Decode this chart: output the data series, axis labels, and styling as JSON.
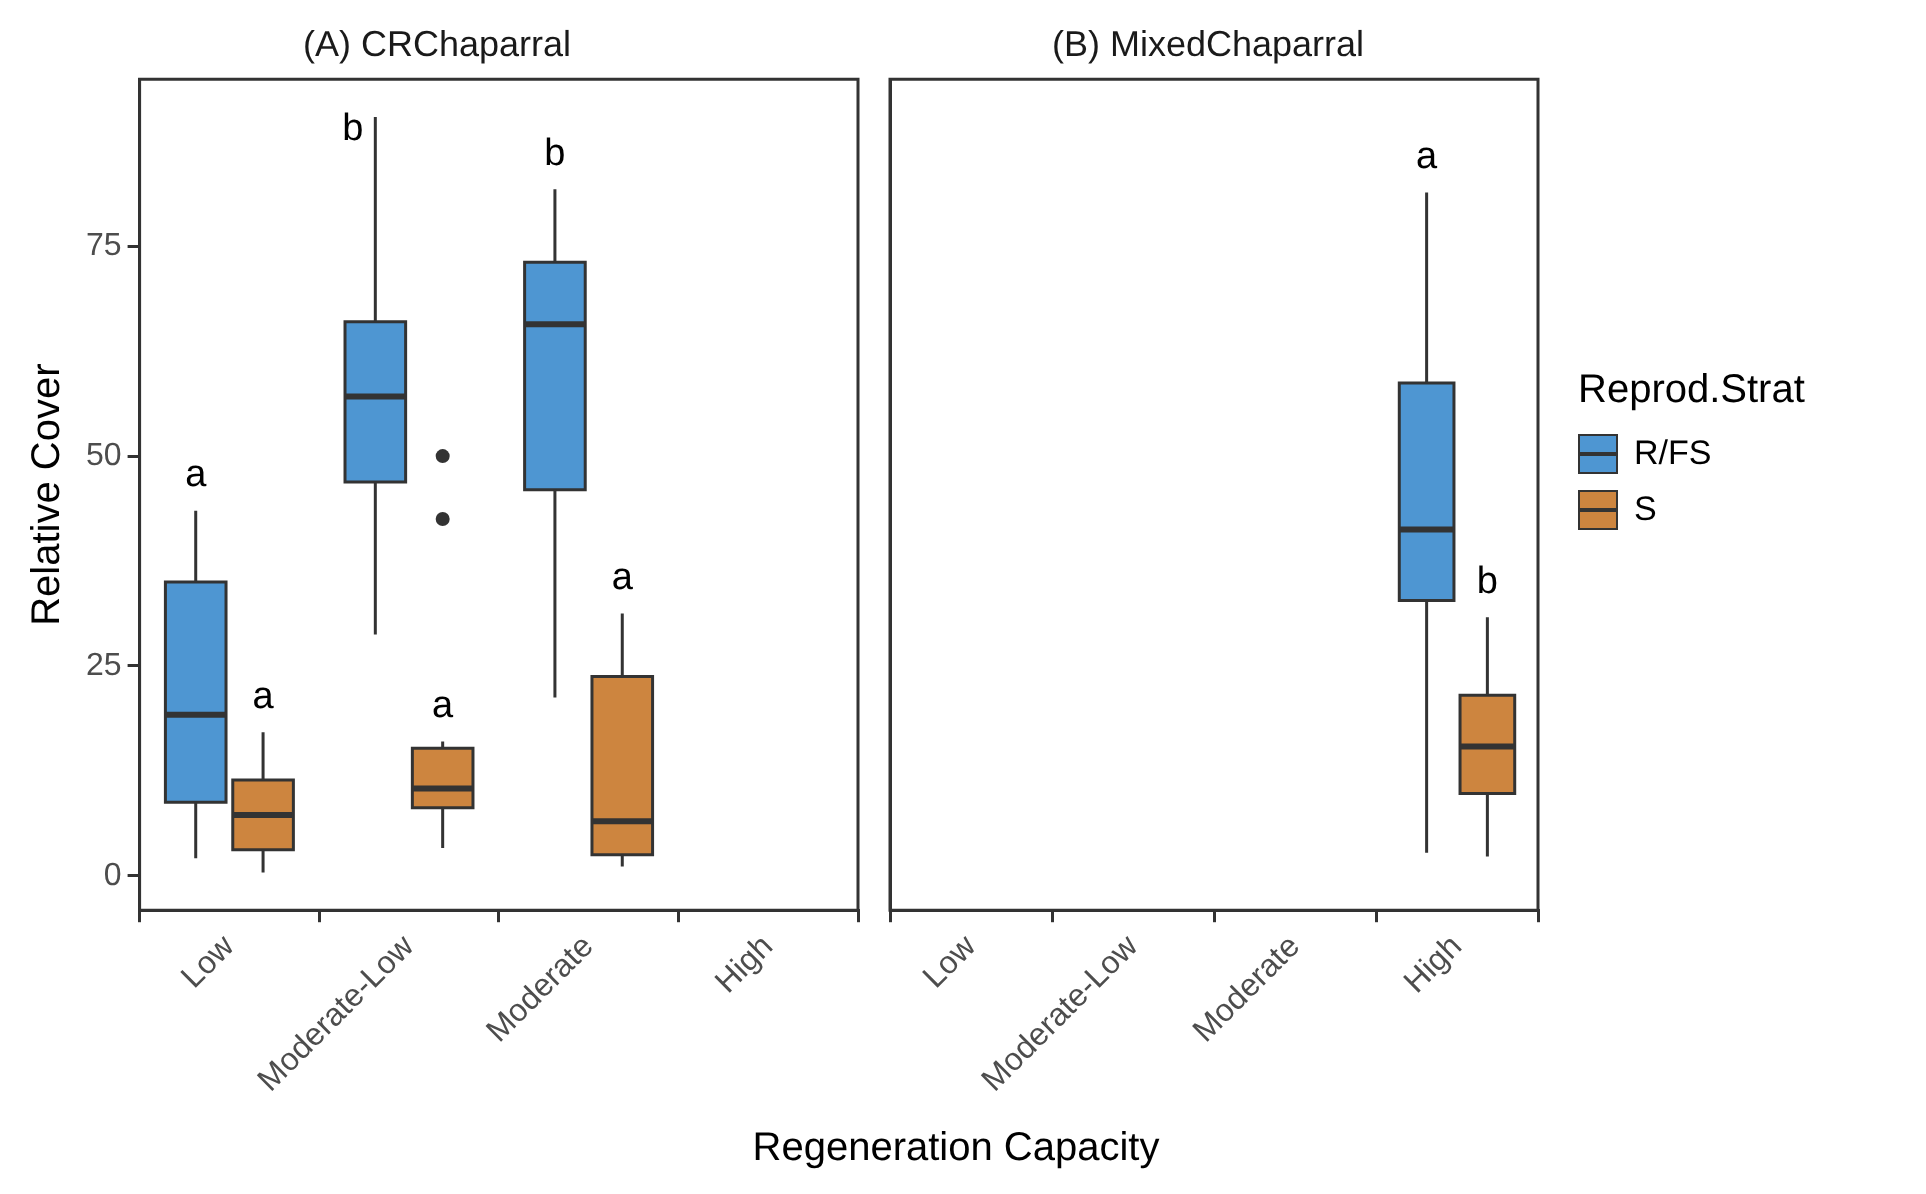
{
  "chart_data": [
    {
      "type": "box",
      "title": "(A) CRChaparral",
      "xlabel": "Regeneration Capacity",
      "ylabel": "Relative Cover",
      "categories": [
        "Low",
        "Moderate-Low",
        "Moderate",
        "High"
      ],
      "ylim": [
        -4.1,
        94.9
      ],
      "yticks": [
        0,
        25,
        50,
        75
      ],
      "series": [
        {
          "color": "#4e96d2",
          "boxes": [
            {
              "low": 2.1,
              "q1": 8.75,
              "median": 19.2,
              "q3": 35,
              "high": 43.5
            },
            {
              "low": 28.75,
              "q1": 46.9,
              "median": 57.1,
              "q3": 66,
              "high": 90.4
            },
            {
              "low": 21.25,
              "q1": 46,
              "median": 65.7,
              "q3": 73.1,
              "high": 81.8
            },
            null
          ]
        },
        {
          "color": "#cd853f",
          "boxes": [
            {
              "low": 0.4,
              "q1": 3.1,
              "median": 7.25,
              "q3": 11.4,
              "high": 17.1
            },
            {
              "low": 3.3,
              "q1": 8.1,
              "median": 10.4,
              "q3": 15.2,
              "high": 16,
              "outliers": [
                50,
                42.5
              ]
            },
            {
              "low": 1.1,
              "q1": 2.5,
              "median": 6.5,
              "q3": 23.75,
              "high": 31.25
            },
            null
          ]
        }
      ],
      "annotations": [
        "a",
        "a",
        "b",
        "a",
        "b",
        "a"
      ]
    },
    {
      "type": "box",
      "title": "(B) MixedChaparral",
      "legend_title": "Reprod.Strat",
      "legend": "right",
      "tick_labels": "x",
      "categories": [
        "Low",
        "Moderate-Low",
        "Moderate",
        "High"
      ],
      "ylim": [
        -4.1,
        94.9
      ],
      "yticks": [
        0,
        25,
        50,
        75
      ],
      "series": [
        {
          "name": "R/FS",
          "color": "#4e96d2",
          "boxes": [
            null,
            null,
            null,
            {
              "low": 2.75,
              "q1": 32.8,
              "median": 41.25,
              "q3": 58.7,
              "high": 81.4
            }
          ]
        },
        {
          "name": "S",
          "color": "#cd853f",
          "boxes": [
            null,
            null,
            null,
            {
              "low": 2.3,
              "q1": 9.8,
              "median": 15.4,
              "q3": 21.5,
              "high": 30.8
            }
          ]
        }
      ],
      "annotations": [
        "a",
        "b"
      ]
    }
  ]
}
